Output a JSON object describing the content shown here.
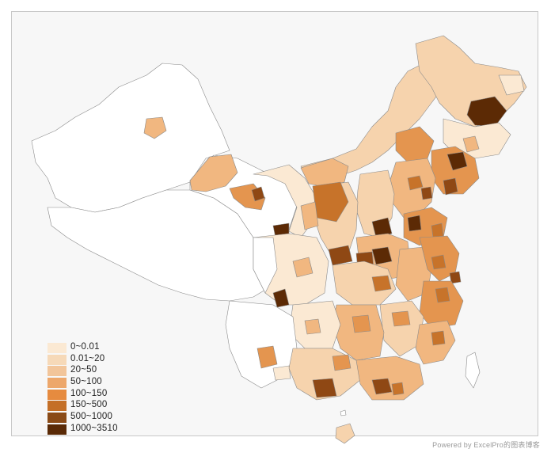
{
  "map": {
    "colors": {
      "none": "#ffffff",
      "c1": "#fbe9d3",
      "c2": "#f6d3ad",
      "c3": "#f1b780",
      "c4": "#e4954f",
      "c5": "#c7732a",
      "c6": "#8f4814",
      "c7": "#5c2a05",
      "border": "#8a8a8a"
    }
  },
  "legend": {
    "items": [
      {
        "label": "0~0.01",
        "color": "#fbe9d3"
      },
      {
        "label": "0.01~20",
        "color": "#f6d9b8"
      },
      {
        "label": "20~50",
        "color": "#f2c59a"
      },
      {
        "label": "50~100",
        "color": "#eda76b"
      },
      {
        "label": "100~150",
        "color": "#e68b3f"
      },
      {
        "label": "150~500",
        "color": "#c46f27"
      },
      {
        "label": "500~1000",
        "color": "#8a4a16"
      },
      {
        "label": "1000~3510",
        "color": "#5a2a06"
      }
    ]
  },
  "watermark": "Powered by ExcelPro的图表博客"
}
